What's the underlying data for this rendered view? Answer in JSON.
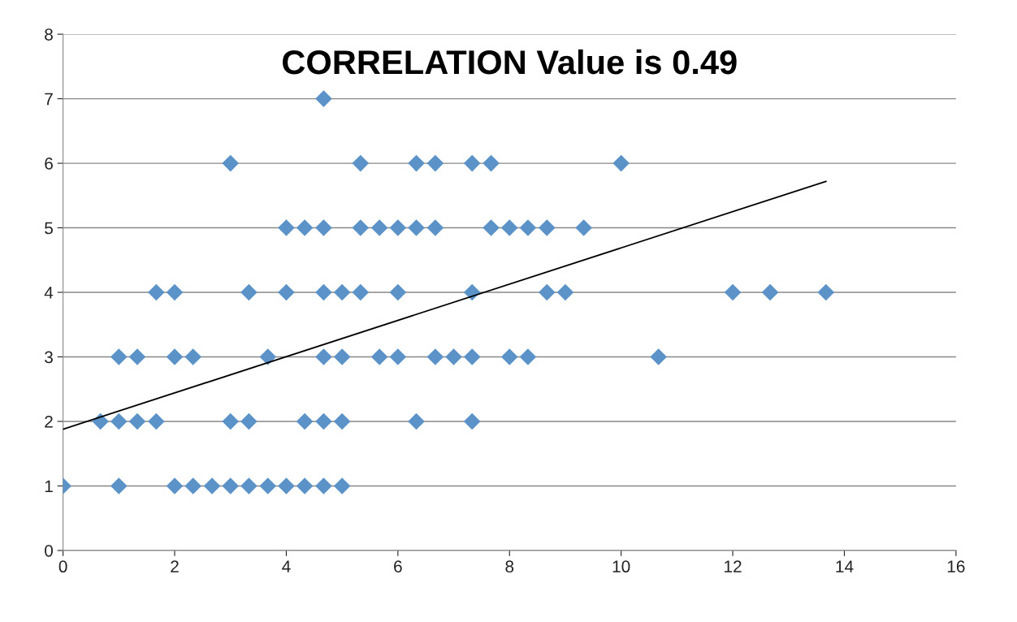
{
  "chart_data": {
    "type": "scatter",
    "title": "CORRELATION Value is 0.49",
    "series": [
      {
        "color": "#5b93c9",
        "marker": "diamond",
        "x": [
          0,
          1,
          2,
          2.33,
          2.67,
          3,
          3.33,
          3.67,
          4,
          4.33,
          4.67,
          5,
          0.67,
          1,
          1.33,
          1.67,
          3,
          3.33,
          4.33,
          4.67,
          5,
          6.33,
          7.33,
          1,
          1.33,
          2,
          2.33,
          3.67,
          4.67,
          5,
          5.67,
          6,
          6.67,
          7,
          7.33,
          8,
          8.33,
          10.67,
          1.67,
          2,
          3.33,
          4,
          4.67,
          5,
          5.33,
          6,
          7.33,
          8.67,
          9,
          12,
          12.67,
          13.67,
          4,
          4.33,
          4.67,
          5.33,
          5.67,
          6,
          6.33,
          6.67,
          7.67,
          8,
          8.33,
          8.67,
          9.33,
          3,
          5.33,
          6.33,
          6.67,
          7.33,
          7.67,
          10,
          4.67
        ],
        "values": [
          1,
          1,
          1,
          1,
          1,
          1,
          1,
          1,
          1,
          1,
          1,
          1,
          2,
          2,
          2,
          2,
          2,
          2,
          2,
          2,
          2,
          2,
          2,
          3,
          3,
          3,
          3,
          3,
          3,
          3,
          3,
          3,
          3,
          3,
          3,
          3,
          3,
          3,
          4,
          4,
          4,
          4,
          4,
          4,
          4,
          4,
          4,
          4,
          4,
          4,
          4,
          4,
          5,
          5,
          5,
          5,
          5,
          5,
          5,
          5,
          5,
          5,
          5,
          5,
          5,
          6,
          6,
          6,
          6,
          6,
          6,
          6,
          7
        ]
      },
      {
        "type": "line",
        "color": "#000000",
        "marker": "none",
        "x": [
          0,
          13.67
        ],
        "values": [
          1.88,
          5.72
        ]
      }
    ],
    "xlim": [
      0,
      16
    ],
    "xticks": [
      0,
      2,
      4,
      6,
      8,
      10,
      12,
      14,
      16
    ],
    "ylim": [
      0,
      8
    ],
    "yticks": [
      0,
      1,
      2,
      3,
      4,
      5,
      6,
      7,
      8
    ],
    "grid": "y",
    "legend": false
  }
}
